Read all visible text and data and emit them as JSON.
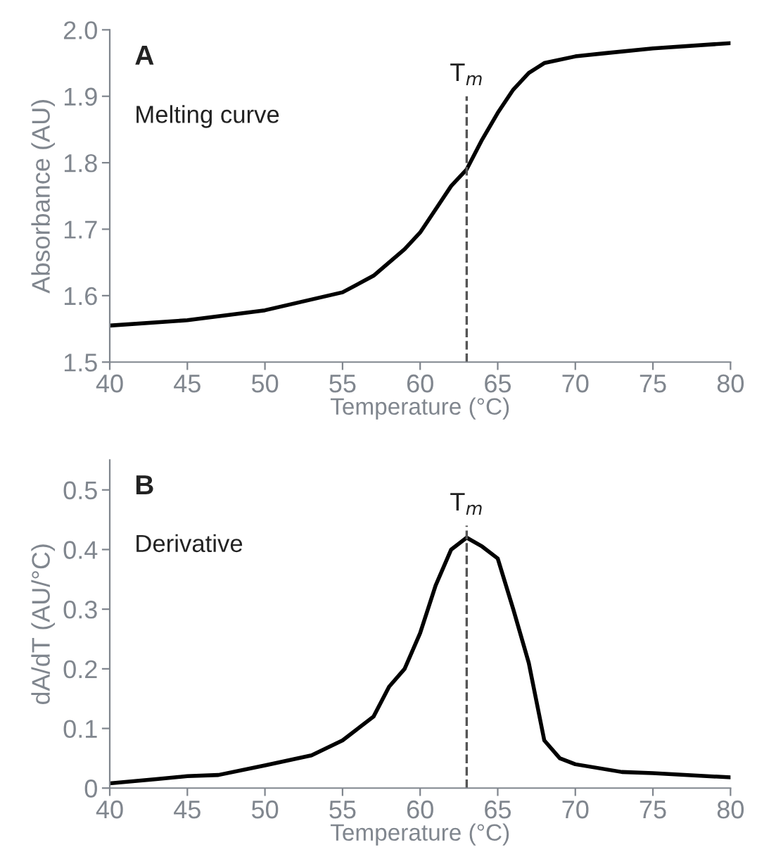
{
  "chart_data": [
    {
      "type": "line",
      "title": "A",
      "annotations": [
        "Melting curve"
      ],
      "xlabel": "Temperature (°C)",
      "ylabel": "Absorbance (AU)",
      "xlim": [
        40,
        80
      ],
      "ylim": [
        1.5,
        2.0
      ],
      "xticks": [
        40,
        45,
        50,
        55,
        60,
        65,
        70,
        75,
        80
      ],
      "yticks": [
        1.5,
        1.6,
        1.7,
        1.8,
        1.9,
        {
          "value": 2.0,
          "label": "2.0"
        }
      ],
      "grid": false,
      "legend": false,
      "marker": "none",
      "line_style": "solid",
      "x": [
        40,
        45,
        50,
        55,
        57,
        59,
        60,
        61,
        62,
        63,
        64,
        65,
        66,
        67,
        68,
        70,
        72,
        75,
        80
      ],
      "series": [
        {
          "color": "#000000",
          "values": [
            1.555,
            1.563,
            1.578,
            1.605,
            1.63,
            1.67,
            1.695,
            1.73,
            1.765,
            1.79,
            1.835,
            1.875,
            1.91,
            1.935,
            1.95,
            1.96,
            1.965,
            1.972,
            1.98
          ]
        }
      ],
      "ref_lines": [
        {
          "axis": "x",
          "value": 63,
          "label": "T$_{m}$",
          "color": "#555555",
          "line_style": "dashed"
        }
      ]
    },
    {
      "type": "line",
      "title": "B",
      "annotations": [
        "Derivative"
      ],
      "xlabel": "Temperature (°C)",
      "ylabel": "dA/dT (AU/°C)",
      "xlim": [
        40,
        80
      ],
      "ylim": [
        0,
        0.55
      ],
      "xticks": [
        40,
        45,
        50,
        55,
        60,
        65,
        70,
        75,
        80
      ],
      "yticks": [
        0,
        0.1,
        0.2,
        0.3,
        0.4,
        0.5
      ],
      "grid": false,
      "legend": false,
      "marker": "none",
      "line_style": "solid",
      "x": [
        40,
        43,
        45,
        47,
        50,
        53,
        55,
        57,
        58,
        59,
        60,
        61,
        62,
        63,
        64,
        65,
        66,
        67,
        68,
        69,
        70,
        73,
        75,
        80
      ],
      "series": [
        {
          "color": "#000000",
          "values": [
            0.008,
            0.015,
            0.02,
            0.022,
            0.038,
            0.055,
            0.08,
            0.12,
            0.17,
            0.2,
            0.26,
            0.34,
            0.4,
            0.42,
            0.405,
            0.385,
            0.3,
            0.21,
            0.08,
            0.05,
            0.04,
            0.027,
            0.025,
            0.018
          ]
        }
      ],
      "ref_lines": [
        {
          "axis": "x",
          "value": 63,
          "label": "T$_{m}$",
          "color": "#555555",
          "line_style": "dashed"
        }
      ]
    }
  ]
}
